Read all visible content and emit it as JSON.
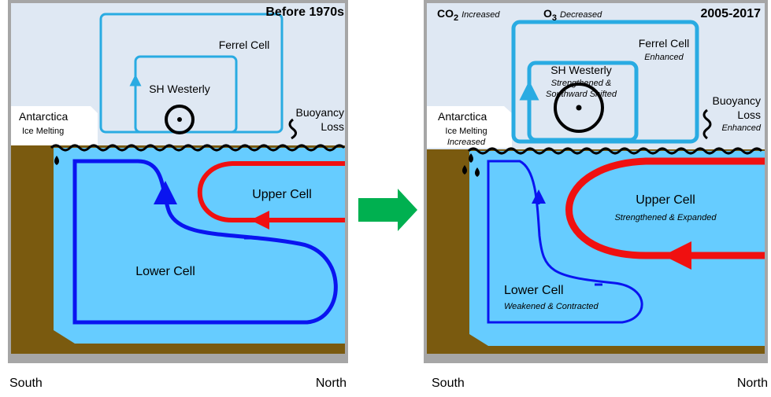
{
  "left_panel": {
    "title": "Before 1970s",
    "ferrel_cell": "Ferrel Cell",
    "westerly": "SH Westerly",
    "antarctica": "Antarctica",
    "ice": "Ice Melting",
    "buoyancy": [
      "Buoyancy",
      "Loss"
    ],
    "upper_cell": "Upper Cell",
    "lower_cell": "Lower Cell",
    "south": "South",
    "north": "North"
  },
  "right_panel": {
    "co2": {
      "formula": "CO",
      "subscript": "2",
      "change": "Increased"
    },
    "o3": {
      "formula": "O",
      "subscript": "3",
      "change": "Decreased"
    },
    "title": "2005-2017",
    "ferrel_cell": {
      "name": "Ferrel Cell",
      "change": "Enhanced"
    },
    "westerly": {
      "name": "SH Westerly",
      "change": [
        "Strengthened &",
        "Southward Shifted"
      ]
    },
    "antarctica": "Antarctica",
    "ice": {
      "name": "Ice Melting",
      "change": "Increased"
    },
    "buoyancy": {
      "name": [
        "Buoyancy",
        "Loss"
      ],
      "change": "Enhanced"
    },
    "upper_cell": {
      "name": "Upper Cell",
      "change": "Strengthened & Expanded"
    },
    "lower_cell": {
      "name": "Lower Cell",
      "change": "Weakened & Contracted"
    },
    "south": "South",
    "north": "North"
  }
}
